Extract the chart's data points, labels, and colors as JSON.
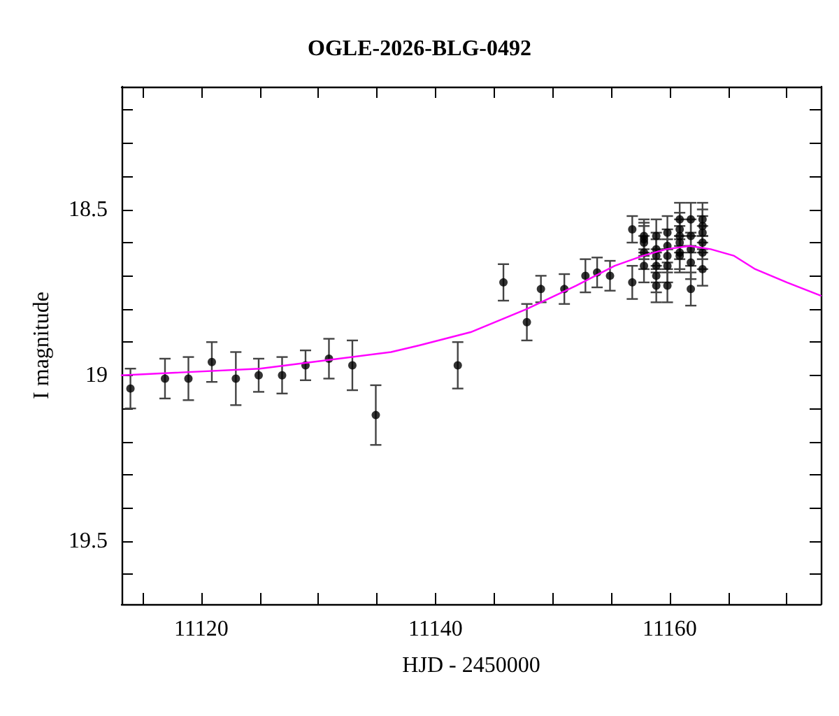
{
  "chart_data": {
    "type": "scatter",
    "title": "OGLE-2026-BLG-0492",
    "xlabel": "HJD - 2450000",
    "ylabel": "I magnitude",
    "xlim": [
      11113.2,
      11172.9
    ],
    "ylim": [
      19.69,
      18.13
    ],
    "xticks": [
      {
        "value": 11115,
        "label": null
      },
      11120,
      {
        "value": 11125,
        "label": null
      },
      {
        "value": 11130,
        "label": null
      },
      {
        "value": 11135,
        "label": null
      },
      11140,
      {
        "value": 11145,
        "label": null
      },
      {
        "value": 11150,
        "label": null
      },
      {
        "value": 11155,
        "label": null
      },
      11160,
      {
        "value": 11165,
        "label": null
      },
      {
        "value": 11170,
        "label": null
      }
    ],
    "yticks": [
      {
        "value": 18.2,
        "label": null
      },
      {
        "value": 18.3,
        "label": null
      },
      {
        "value": 18.4,
        "label": null
      },
      18.5,
      {
        "value": 18.6,
        "label": null
      },
      {
        "value": 18.7,
        "label": null
      },
      {
        "value": 18.8,
        "label": null
      },
      {
        "value": 18.9,
        "label": null
      },
      19,
      {
        "value": 19.1,
        "label": null
      },
      {
        "value": 19.2,
        "label": null
      },
      {
        "value": 19.3,
        "label": null
      },
      {
        "value": 19.4,
        "label": null
      },
      19.5,
      {
        "value": 19.6,
        "label": null
      }
    ],
    "grid": false,
    "series": [
      {
        "color": "#000000",
        "marker": "circle",
        "x": [
          11113.95,
          11116.9,
          11118.9,
          11120.9,
          11122.95,
          11124.9,
          11126.9,
          11128.9,
          11130.9,
          11132.9,
          11134.9,
          11141.9,
          11145.8,
          11147.8,
          11149.0,
          11151.0,
          11152.8,
          11153.8,
          11154.9,
          11156.8,
          11156.8,
          11157.8,
          11157.8,
          11157.8,
          11157.8,
          11157.8,
          11158.85,
          11158.85,
          11158.85,
          11158.85,
          11158.85,
          11158.85,
          11159.8,
          11159.8,
          11159.8,
          11159.8,
          11159.8,
          11160.85,
          11160.85,
          11160.85,
          11160.85,
          11160.85,
          11160.85,
          11161.8,
          11161.8,
          11161.8,
          11161.8,
          11161.8,
          11162.8,
          11162.8,
          11162.8,
          11162.8,
          11162.8,
          11162.8
        ],
        "values": [
          19.04,
          19.01,
          19.01,
          18.96,
          19.01,
          19.0,
          19.0,
          18.97,
          18.95,
          18.97,
          19.12,
          18.97,
          18.72,
          18.84,
          18.74,
          18.74,
          18.7,
          18.69,
          18.7,
          18.56,
          18.72,
          18.58,
          18.59,
          18.6,
          18.63,
          18.67,
          18.58,
          18.62,
          18.64,
          18.67,
          18.7,
          18.73,
          18.57,
          18.61,
          18.64,
          18.67,
          18.73,
          18.53,
          18.56,
          18.58,
          18.6,
          18.63,
          18.64,
          18.53,
          18.58,
          18.62,
          18.66,
          18.74,
          18.53,
          18.55,
          18.57,
          18.6,
          18.63,
          18.68
        ],
        "errors": [
          0.06,
          0.06,
          0.065,
          0.06,
          0.08,
          0.05,
          0.055,
          0.045,
          0.06,
          0.075,
          0.09,
          0.07,
          0.055,
          0.055,
          0.04,
          0.045,
          0.05,
          0.045,
          0.045,
          0.04,
          0.05,
          0.05,
          0.05,
          0.05,
          0.05,
          0.05,
          0.05,
          0.05,
          0.05,
          0.05,
          0.05,
          0.05,
          0.05,
          0.05,
          0.05,
          0.05,
          0.05,
          0.05,
          0.05,
          0.05,
          0.05,
          0.05,
          0.05,
          0.05,
          0.05,
          0.05,
          0.05,
          0.05,
          0.05,
          0.05,
          0.05,
          0.05,
          0.05,
          0.05
        ]
      },
      {
        "type": "line",
        "color": "#ff00ff",
        "marker": "none",
        "line_style": "solid",
        "x": [
          11113.2,
          11125,
          11136.2,
          11138.6,
          11143,
          11147.8,
          11152,
          11155.3,
          11157.7,
          11159.7,
          11161.7,
          11163.5,
          11165.5,
          11167.3,
          11170,
          11172.9
        ],
        "values": [
          19.0,
          18.98,
          18.93,
          18.91,
          18.87,
          18.8,
          18.73,
          18.67,
          18.64,
          18.62,
          18.61,
          18.62,
          18.64,
          18.68,
          18.72,
          18.76
        ]
      }
    ]
  }
}
